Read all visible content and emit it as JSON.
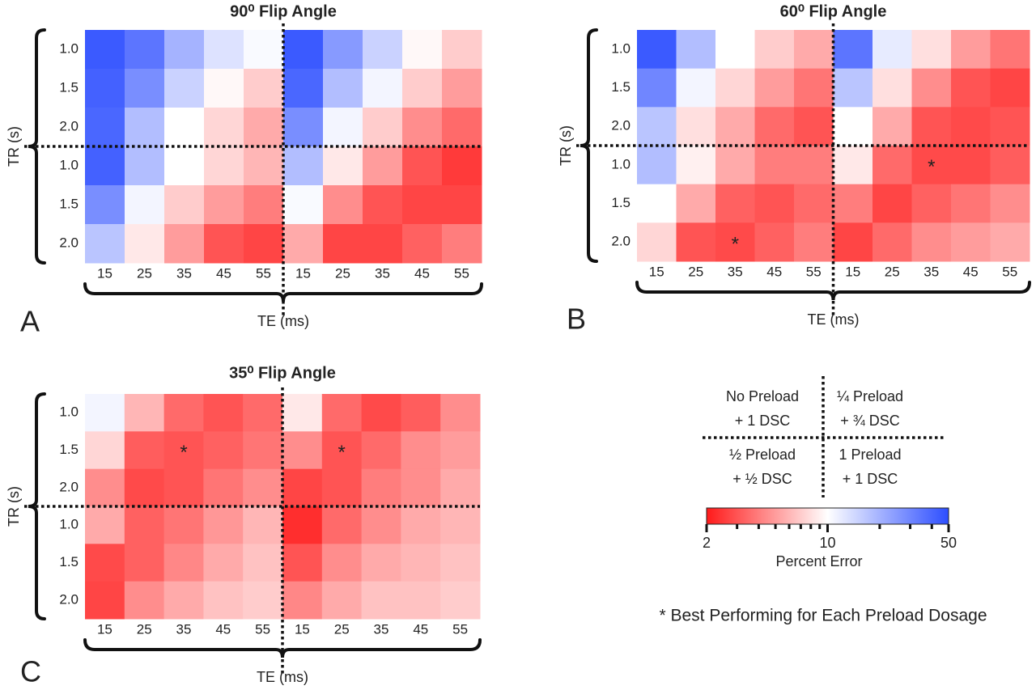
{
  "chart_data": [
    {
      "type": "heatmap",
      "title": "90⁰ Flip Angle",
      "panel": "A",
      "xlabel": "TE (ms)",
      "ylabel": "TR (s)",
      "x": [
        "15",
        "25",
        "35",
        "45",
        "55",
        "15",
        "25",
        "35",
        "45",
        "55"
      ],
      "y": [
        "1.0",
        "1.5",
        "2.0",
        "1.0",
        "1.5",
        "2.0"
      ],
      "values": [
        [
          45,
          35,
          20,
          13,
          10.5,
          45,
          25,
          15,
          9.5,
          7
        ],
        [
          42,
          28,
          15,
          9.5,
          7,
          40,
          18,
          11,
          7,
          5
        ],
        [
          40,
          18,
          10,
          7.5,
          5.5,
          28,
          11,
          7,
          4.5,
          3.5
        ],
        [
          42,
          18,
          10,
          7.5,
          6,
          18,
          8.5,
          5,
          3,
          2.5
        ],
        [
          28,
          11,
          7,
          5,
          4,
          10.5,
          4.5,
          3,
          2.7,
          2.7
        ],
        [
          17,
          8.5,
          5,
          3,
          2.7,
          5.5,
          2.7,
          2.7,
          3.3,
          4
        ]
      ],
      "annotations": []
    },
    {
      "type": "heatmap",
      "title": "60⁰ Flip Angle",
      "panel": "B",
      "xlabel": "TE (ms)",
      "ylabel": "TR (s)",
      "x": [
        "15",
        "25",
        "35",
        "45",
        "55",
        "15",
        "25",
        "35",
        "45",
        "55"
      ],
      "y": [
        "1.0",
        "1.5",
        "2.0",
        "1.0",
        "1.5",
        "2.0"
      ],
      "values": [
        [
          45,
          18,
          10,
          7,
          5.5,
          35,
          12,
          8,
          5,
          3.8
        ],
        [
          30,
          11,
          7.5,
          5,
          3.8,
          17,
          8,
          4.5,
          3,
          2.7
        ],
        [
          17,
          8,
          5.5,
          3.5,
          3,
          10,
          5.5,
          3,
          2.8,
          3
        ],
        [
          18,
          9,
          5.5,
          4,
          4,
          8.5,
          3.5,
          2.8,
          2.8,
          3.2
        ],
        [
          10,
          5.5,
          3.3,
          3,
          3.5,
          4,
          2.7,
          3.3,
          3.8,
          4.5
        ],
        [
          7.5,
          3,
          2.8,
          3.3,
          4,
          2.7,
          3.5,
          4.5,
          5,
          5.5
        ]
      ],
      "annotations": [
        {
          "text": "*",
          "row": 5,
          "col": 2
        },
        {
          "text": "*",
          "row": 3,
          "col": 7
        }
      ]
    },
    {
      "type": "heatmap",
      "title": "35⁰ Flip Angle",
      "panel": "C",
      "xlabel": "TE (ms)",
      "ylabel": "TR (s)",
      "x": [
        "15",
        "25",
        "35",
        "45",
        "55",
        "15",
        "25",
        "35",
        "45",
        "55"
      ],
      "y": [
        "1.0",
        "1.5",
        "2.0",
        "1.0",
        "1.5",
        "2.0"
      ],
      "values": [
        [
          11,
          6,
          3.5,
          3,
          3.5,
          8.5,
          3.5,
          2.8,
          3.2,
          4.5
        ],
        [
          7.5,
          3.2,
          3,
          3.3,
          3.8,
          4.5,
          3,
          3.5,
          4.5,
          5
        ],
        [
          4.5,
          2.8,
          3,
          3.8,
          4.5,
          2.7,
          3,
          4,
          4.5,
          5.5
        ],
        [
          5.5,
          3.3,
          3.8,
          4.8,
          6,
          2.3,
          3.5,
          4.5,
          5.5,
          6
        ],
        [
          2.8,
          3.3,
          4.3,
          5.5,
          6.5,
          3,
          4.5,
          5.5,
          6,
          6.5
        ],
        [
          2.7,
          4.5,
          5.5,
          6.5,
          7,
          4.3,
          5.5,
          6.5,
          6.5,
          7
        ]
      ],
      "annotations": [
        {
          "text": "*",
          "row": 1,
          "col": 2
        },
        {
          "text": "*",
          "row": 1,
          "col": 6
        }
      ]
    }
  ],
  "colorbar": {
    "label": "Percent Error",
    "log": true,
    "zlim": [
      2,
      50
    ],
    "colors": [
      "#ff1a1a",
      "#ffffff",
      "#2d4eff"
    ],
    "ticks": [
      2,
      10,
      50
    ],
    "minor_ticks": [
      3,
      4,
      5,
      6,
      7,
      8,
      9,
      20,
      30,
      40
    ]
  },
  "legend": {
    "quadrants": [
      [
        "No Preload",
        "+ 1 DSC"
      ],
      [
        "¼ Preload",
        "+ ¾ DSC"
      ],
      [
        "½ Preload",
        "+ ½ DSC"
      ],
      [
        "1 Preload",
        "+ 1 DSC"
      ]
    ]
  },
  "footnote": "* Best Performing for Each Preload Dosage"
}
